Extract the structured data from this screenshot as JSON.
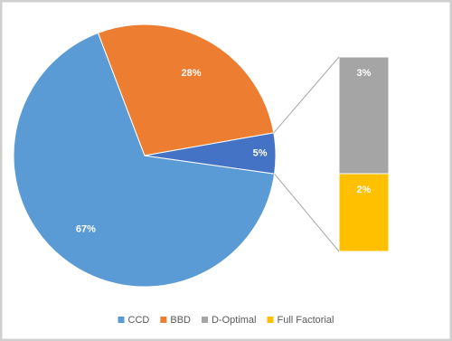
{
  "chart_data": {
    "type": "pie-of-bar",
    "categories": [
      "CCD",
      "BBD",
      null
    ],
    "values": [
      67,
      28,
      5
    ],
    "value_labels": [
      "67%",
      "28%",
      "5%"
    ],
    "colors": [
      "#5b9bd5",
      "#ed7d31",
      "#4472c4"
    ],
    "secondary": {
      "categories": [
        "D-Optimal",
        "Full Factorial"
      ],
      "values": [
        3,
        2
      ],
      "value_labels": [
        "3%",
        "2%"
      ],
      "colors": [
        "#a5a5a5",
        "#ffc000"
      ]
    }
  }
}
